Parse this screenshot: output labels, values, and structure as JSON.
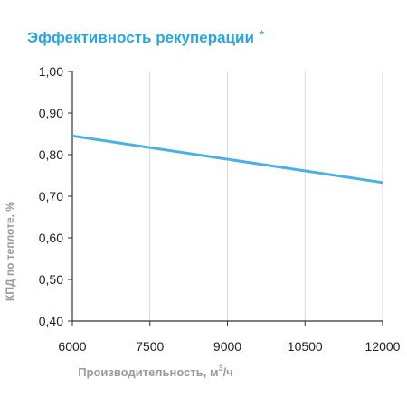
{
  "title": "Эффективность рекуперации",
  "title_mark": "*",
  "colors": {
    "title": "#2ba6dc",
    "line": "#4ab2e3",
    "grid": "#d9d9d9",
    "axis": "#333333",
    "tick_label": "#222222",
    "axis_label": "#9a9a9a"
  },
  "chart_data": {
    "type": "line",
    "xlabel_text": "Производительность, м",
    "xlabel_sup": "3",
    "xlabel_tail": "/ч",
    "ylabel": "КПД по теплоте, %",
    "x_ticks": [
      "6000",
      "7500",
      "9000",
      "10500",
      "12000"
    ],
    "y_ticks": [
      "0,40",
      "0,50",
      "0,60",
      "0,70",
      "0,80",
      "0,90",
      "1,00"
    ],
    "xlim": [
      6000,
      12000
    ],
    "ylim": [
      0.4,
      1.0
    ],
    "grid_x": true,
    "grid_y": false,
    "series": [
      {
        "x": [
          6000,
          12000
        ],
        "y": [
          0.845,
          0.733
        ]
      }
    ]
  }
}
